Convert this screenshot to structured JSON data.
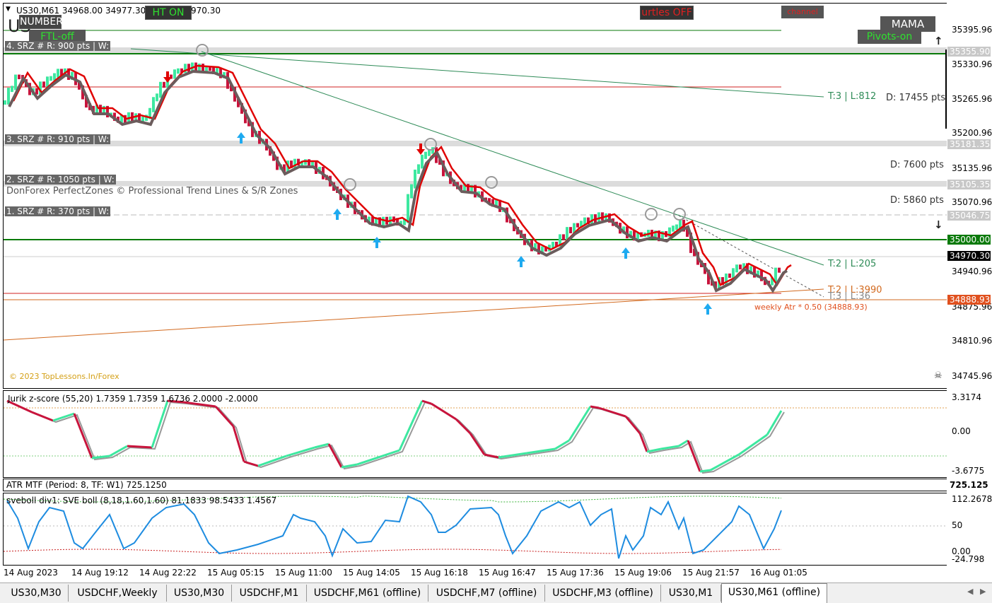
{
  "header": {
    "title": "US30,M61  34968.00 34977.30 3",
    "title_tail": "970.30",
    "logo_text": "US",
    "number_btn": "NUMBER",
    "ftl_btn": "FTL-off",
    "ht_btn": "HT ON",
    "turtles_btn": "urtles OFF",
    "channel_btn": "channel",
    "mama_btn": "MAMA",
    "pivots_btn": "Pivots-on"
  },
  "srz": [
    {
      "label": "4. SRZ # R: 900 pts  |  W:"
    },
    {
      "label": "3. SRZ # R: 910 pts  |  W:"
    },
    {
      "label": "2. SRZ # R: 1050 pts  |  W:"
    },
    {
      "label": "1. SRZ # R: 370 pts  |  W:"
    }
  ],
  "brand_text": "DonForex PerfectZones © Professional Trend Lines & S/R Zones",
  "copyright": "© 2023 TopLessons.In/Forex",
  "trend_labels": {
    "t3": "T:3  |  L:812",
    "t2": "T:2  |  L:205",
    "t2b": "T:2  |  L:3990",
    "t3b": "T:3  |  L:36"
  },
  "distances": {
    "d1": "D: 17455 pts",
    "d2": "D: 7600 pts",
    "d3": "D: 5860 pts"
  },
  "atr_label": "weekly Atr * 0.50 (34888.93)",
  "price_scale": [
    "35395.96",
    "35330.96",
    "35265.96",
    "35200.96",
    "35135.96",
    "35070.96",
    "34940.96",
    "34875.96",
    "34810.96",
    "34745.96"
  ],
  "price_tags": {
    "t35355": "35355.90",
    "t35181": "35181.35",
    "t35105": "35105.35",
    "t35046": "35046.75",
    "t35000": "35000.00",
    "t34970": "34970.30",
    "t34888": "34888.93"
  },
  "indicators": {
    "jurik": {
      "label": "Jurik z-score (55,20) 1.7359 1.7359 1.6736 2.0000 -2.0000",
      "scale": [
        "3.3174",
        "0.00",
        "-3.6775"
      ]
    },
    "atr": {
      "label": "ATR MTF (Period: 8, TF: W1) 725.1250",
      "scale": [
        "725.125"
      ]
    },
    "sve": {
      "label": "sveboll div1:  SVE boll (8,18,1.60,1.60) 81.1833 98.5433 1.4567",
      "scale": [
        "112.2678",
        "50",
        "0.00",
        "-24.798"
      ]
    }
  },
  "time_axis": [
    "14 Aug 2023",
    "14 Aug 19:12",
    "14 Aug 22:22",
    "15 Aug 05:15",
    "15 Aug 11:00",
    "15 Aug 14:05",
    "15 Aug 16:18",
    "15 Aug 16:47",
    "15 Aug 17:36",
    "15 Aug 19:06",
    "15 Aug 21:57",
    "16 Aug 01:05"
  ],
  "tabs": [
    "US30,M30",
    "USDCHF,Weekly",
    "US30,M30",
    "USDCHF,M1",
    "USDCHF,M61 (offline)",
    "USDCHF,M7 (offline)",
    "USDCHF,M3 (offline)",
    "US30,M1",
    "US30,M61 (offline)"
  ],
  "active_tab": "US30,M61 (offline)",
  "colors": {
    "bull": "#3de8a0",
    "bear": "#c8143c",
    "red_line": "#e00000",
    "green_line": "#2fbf2f",
    "accent_green": "#0a7a0a"
  }
}
